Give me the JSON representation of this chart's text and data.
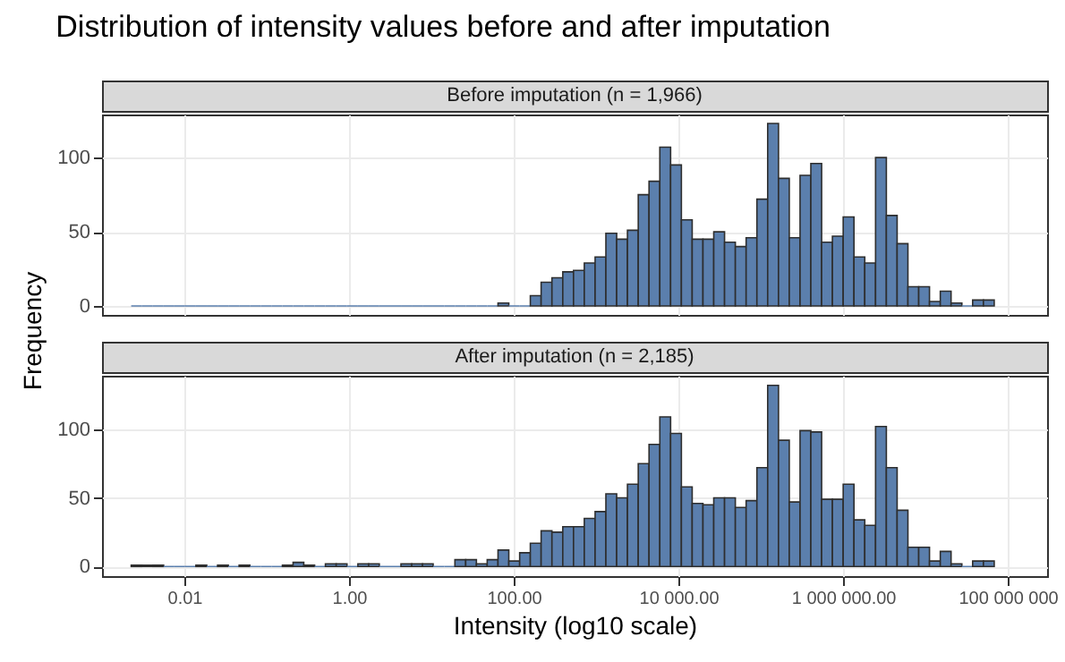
{
  "chart_data": [
    {
      "type": "histogram",
      "title": "Distribution of intensity values before and after imputation",
      "subtitle": "Before imputation (n = 1,966)",
      "ylabel": "Frequency",
      "color": "#5b7fad",
      "log": "x",
      "grid": true,
      "tick_labels": "y",
      "bins": [
        0.00226,
        0.00306,
        0.00414,
        0.0056,
        0.00757,
        0.0102,
        0.0138,
        0.0187,
        0.0253,
        0.0342,
        0.0462,
        0.0625,
        0.0845,
        0.114,
        0.155,
        0.209,
        0.282,
        0.382,
        0.516,
        0.698,
        0.944,
        1.28,
        1.73,
        2.33,
        3.16,
        4.27,
        5.77,
        7.8,
        10.5,
        14.3,
        19.3,
        26.1,
        35.2,
        47.6,
        64.4,
        87.1,
        118,
        159,
        215,
        291,
        394,
        532,
        719,
        973,
        1315,
        1778,
        2404,
        3251,
        4395,
        5943,
        8035,
        10860,
        14690,
        19860,
        26850,
        36310,
        49090,
        66370,
        89740,
        121300,
        164100,
        221800,
        299900,
        405500,
        548300,
        741300,
        1002000,
        1355000,
        1832000,
        2477000,
        3350000,
        4529000,
        6124000,
        8279000,
        11190000,
        15140000,
        20460000,
        27670000,
        37410000,
        50580000,
        68390000
      ],
      "values": [
        0,
        0,
        0,
        0,
        0,
        0,
        0,
        0,
        0,
        0,
        0,
        0,
        0,
        0,
        0,
        0,
        0,
        0,
        0,
        0,
        0,
        0,
        0,
        0,
        0,
        0,
        0,
        0,
        0,
        0,
        0,
        0,
        0,
        0,
        2,
        0,
        0,
        7,
        16,
        19,
        23,
        24,
        29,
        33,
        49,
        45,
        51,
        75,
        84,
        107,
        95,
        58,
        45,
        45,
        50,
        43,
        40,
        46,
        72,
        123,
        86,
        46,
        88,
        96,
        43,
        47,
        60,
        33,
        29,
        100,
        61,
        42,
        13,
        13,
        3,
        10,
        2,
        0,
        4,
        4
      ],
      "xlim": [
        0.001,
        300000000
      ],
      "xticks": [
        0.01,
        1,
        100,
        10000,
        1000000,
        100000000
      ],
      "ylim": [
        -6,
        129
      ],
      "yticks": [
        0,
        50,
        100
      ]
    },
    {
      "type": "histogram",
      "subtitle": "After imputation (n = 2,185)",
      "xlabel": "Intensity (log10 scale)",
      "color": "#5b7fad",
      "log": "x",
      "grid": true,
      "bins": [
        0.00226,
        0.00306,
        0.00414,
        0.0056,
        0.00757,
        0.0102,
        0.0138,
        0.0187,
        0.0253,
        0.0342,
        0.0462,
        0.0625,
        0.0845,
        0.114,
        0.155,
        0.209,
        0.282,
        0.382,
        0.516,
        0.698,
        0.944,
        1.28,
        1.73,
        2.33,
        3.16,
        4.27,
        5.77,
        7.8,
        10.5,
        14.3,
        19.3,
        26.1,
        35.2,
        47.6,
        64.4,
        87.1,
        118,
        159,
        215,
        291,
        394,
        532,
        719,
        973,
        1315,
        1778,
        2404,
        3251,
        4395,
        5943,
        8035,
        10860,
        14690,
        19860,
        26850,
        36310,
        49090,
        66370,
        89740,
        121300,
        164100,
        221800,
        299900,
        405500,
        548300,
        741300,
        1002000,
        1355000,
        1832000,
        2477000,
        3350000,
        4529000,
        6124000,
        8279000,
        11190000,
        15140000,
        20460000,
        27670000,
        37410000,
        50580000,
        68390000
      ],
      "values": [
        1,
        1,
        1,
        0,
        0,
        0,
        1,
        0,
        1,
        0,
        1,
        0,
        0,
        0,
        1,
        3,
        1,
        0,
        2,
        2,
        0,
        2,
        2,
        0,
        0,
        2,
        2,
        2,
        0,
        0,
        5,
        5,
        2,
        5,
        12,
        4,
        10,
        17,
        26,
        25,
        29,
        29,
        35,
        40,
        53,
        50,
        60,
        75,
        89,
        109,
        97,
        58,
        46,
        45,
        50,
        50,
        43,
        48,
        72,
        132,
        92,
        47,
        99,
        98,
        49,
        49,
        60,
        34,
        30,
        102,
        72,
        41,
        14,
        14,
        4,
        11,
        2,
        0,
        4,
        4
      ],
      "xlim": [
        0.001,
        300000000
      ],
      "xticks": [
        0.01,
        {
          "value": 1,
          "label": "1.00"
        },
        {
          "value": 100,
          "label": "100.00"
        },
        {
          "value": 10000,
          "label": "10 000.00"
        },
        {
          "value": 1000000,
          "label": "1 000 000.00"
        },
        {
          "value": 100000000,
          "label": "100 000 000"
        }
      ],
      "ylim": [
        -7,
        139
      ],
      "yticks": [
        0,
        50,
        100
      ]
    }
  ]
}
